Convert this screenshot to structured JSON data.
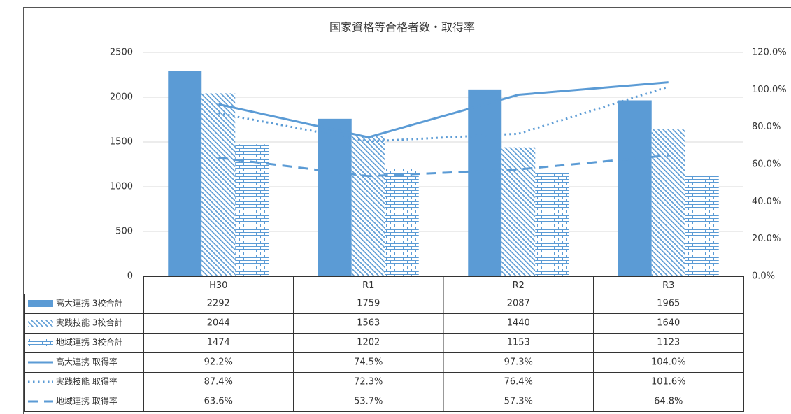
{
  "chart_data": {
    "type": "bar",
    "title": "国家資格等合格者数・取得率",
    "categories": [
      "H30",
      "R1",
      "R2",
      "R3"
    ],
    "ylim": [
      0,
      2500
    ],
    "yticks": [
      0,
      500,
      1000,
      1500,
      2000,
      2500
    ],
    "y2lim": [
      0,
      120
    ],
    "y2ticks": [
      {
        "value": 0,
        "label": "0.0%"
      },
      {
        "value": 20,
        "label": "20.0%"
      },
      {
        "value": 40,
        "label": "40.0%"
      },
      {
        "value": 60,
        "label": "60.0%"
      },
      {
        "value": 80,
        "label": "80.0%"
      },
      {
        "value": 100,
        "label": "100.0%"
      },
      {
        "value": 120,
        "label": "120.0%"
      }
    ],
    "grid": true,
    "series": [
      {
        "name": "高大連携 3校合計",
        "type": "bar",
        "color": "#5b9bd5",
        "pattern": "solid",
        "values": [
          2292,
          1759,
          2087,
          1965
        ]
      },
      {
        "name": "実践技能 3校合計",
        "type": "bar",
        "color": "#5b9bd5",
        "pattern": "diagonal",
        "values": [
          2044,
          1563,
          1440,
          1640
        ]
      },
      {
        "name": "地域連携 3校合計",
        "type": "bar",
        "color": "#5b9bd5",
        "pattern": "brick",
        "values": [
          1474,
          1202,
          1153,
          1123
        ]
      },
      {
        "name": "高大連携 取得率",
        "type": "line",
        "axis": "y2",
        "color": "#5b9bd5",
        "dash": "solid",
        "values": [
          92.2,
          74.5,
          97.3,
          104.0
        ],
        "value_labels": [
          "92.2%",
          "74.5%",
          "97.3%",
          "104.0%"
        ]
      },
      {
        "name": "実践技能 取得率",
        "type": "line",
        "axis": "y2",
        "color": "#5b9bd5",
        "dash": "dotted",
        "values": [
          87.4,
          72.3,
          76.4,
          101.6
        ],
        "value_labels": [
          "87.4%",
          "72.3%",
          "76.4%",
          "101.6%"
        ]
      },
      {
        "name": "地域連携 取得率",
        "type": "line",
        "axis": "y2",
        "color": "#5b9bd5",
        "dash": "dashed",
        "values": [
          63.6,
          53.7,
          57.3,
          64.8
        ],
        "value_labels": [
          "63.6%",
          "53.7%",
          "57.3%",
          "64.8%"
        ]
      }
    ]
  }
}
